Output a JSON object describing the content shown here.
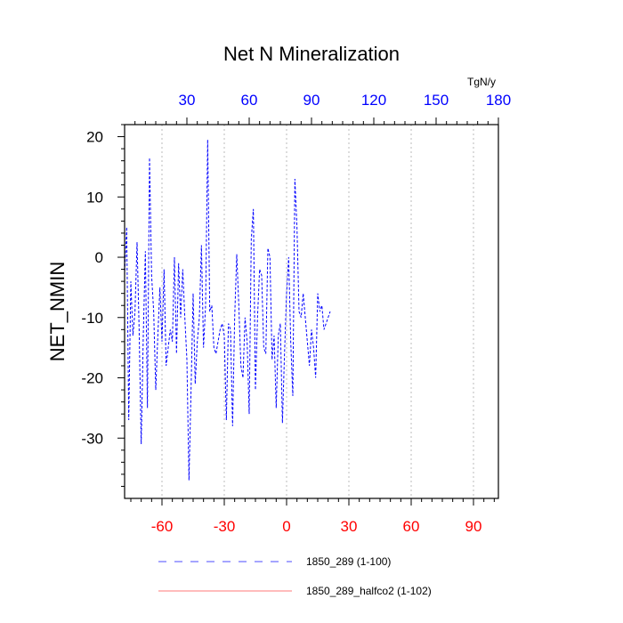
{
  "chart_data": {
    "type": "line",
    "title": "Net N Mineralization",
    "ylabel": "NET_NMIN",
    "units_label": "TgN/y",
    "ylim": [
      -40,
      22
    ],
    "y_ticks": [
      20,
      10,
      0,
      -10,
      -20,
      -30
    ],
    "y_tick_labels": [
      "20",
      "10",
      "0",
      "-10",
      "-20",
      "-30"
    ],
    "x_bottom": {
      "range": [
        -78,
        102
      ],
      "ticks": [
        -60,
        -30,
        0,
        30,
        60,
        90
      ],
      "tick_labels": [
        "-60",
        "-30",
        "0",
        "30",
        "60",
        "90"
      ],
      "color": "#ff0000"
    },
    "x_top": {
      "range": [
        0,
        180
      ],
      "ticks": [
        30,
        60,
        90,
        120,
        150,
        180
      ],
      "tick_labels": [
        "30",
        "60",
        "90",
        "120",
        "150",
        "180"
      ],
      "color": "#0000ff"
    },
    "grid_x": true,
    "series": [
      {
        "name": "1850_289 (1-100)",
        "color": "#0000ff",
        "dash": "dashed",
        "x": [
          -78,
          -77,
          -76,
          -75,
          -74,
          -73,
          -72,
          -71,
          -70,
          -69,
          -68,
          -67,
          -66,
          -65,
          -64,
          -63,
          -62,
          -61,
          -60,
          -59,
          -58,
          -57,
          -56,
          -55,
          -54,
          -53,
          -52,
          -51,
          -50,
          -49,
          -48,
          -47,
          -46,
          -45,
          -44,
          -43,
          -42,
          -41,
          -40,
          -39,
          -38,
          -37,
          -36,
          -35,
          -34,
          -33,
          -32,
          -31,
          -30,
          -29,
          -28,
          -27,
          -26,
          -25,
          -24,
          -23,
          -22,
          -21,
          -20,
          -19,
          -18,
          -17,
          -16,
          -15,
          -14,
          -13,
          -12,
          -11,
          -10,
          -9,
          -8,
          -7,
          -6,
          -5,
          -4,
          -3,
          -2,
          -1,
          0,
          1,
          2,
          3,
          4,
          5,
          6,
          7,
          8,
          9,
          10,
          11,
          12,
          13,
          14,
          15,
          16,
          17,
          18,
          19,
          20,
          21
        ],
        "y": [
          -3,
          5,
          -27,
          -4,
          -13,
          -9,
          2.5,
          -12,
          -31,
          -13,
          1,
          -25,
          16.5,
          -3,
          -9,
          -22,
          -13,
          -5,
          -14,
          -2,
          -18,
          -15,
          -12,
          -14,
          0,
          -16,
          -1,
          -10,
          -2,
          -10,
          -17,
          -37,
          -22,
          -6,
          -21,
          -14,
          -10,
          2,
          -15,
          -8,
          19.5,
          -9,
          -8,
          -15,
          -16,
          -14,
          -12,
          -11,
          -13,
          -27,
          -11,
          -12,
          -28,
          -10,
          0.5,
          -8,
          -18,
          -20,
          -10,
          -14,
          -26,
          3,
          8,
          -22,
          -10,
          -2,
          -3,
          -15,
          -16,
          1.5,
          0,
          -17,
          -13,
          -25,
          -13,
          -11,
          -27.5,
          -16,
          -6,
          0,
          -14,
          -23,
          13,
          5,
          -9,
          -10,
          -6,
          -10,
          -14,
          -18,
          -12,
          -15,
          -20,
          -6,
          -9,
          -8,
          -12,
          -11,
          -10,
          -9
        ]
      },
      {
        "name": "1850_289_halfco2 (1-102)",
        "color": "#ff6a6a",
        "dash": "solid",
        "x": [],
        "y": []
      }
    ]
  }
}
